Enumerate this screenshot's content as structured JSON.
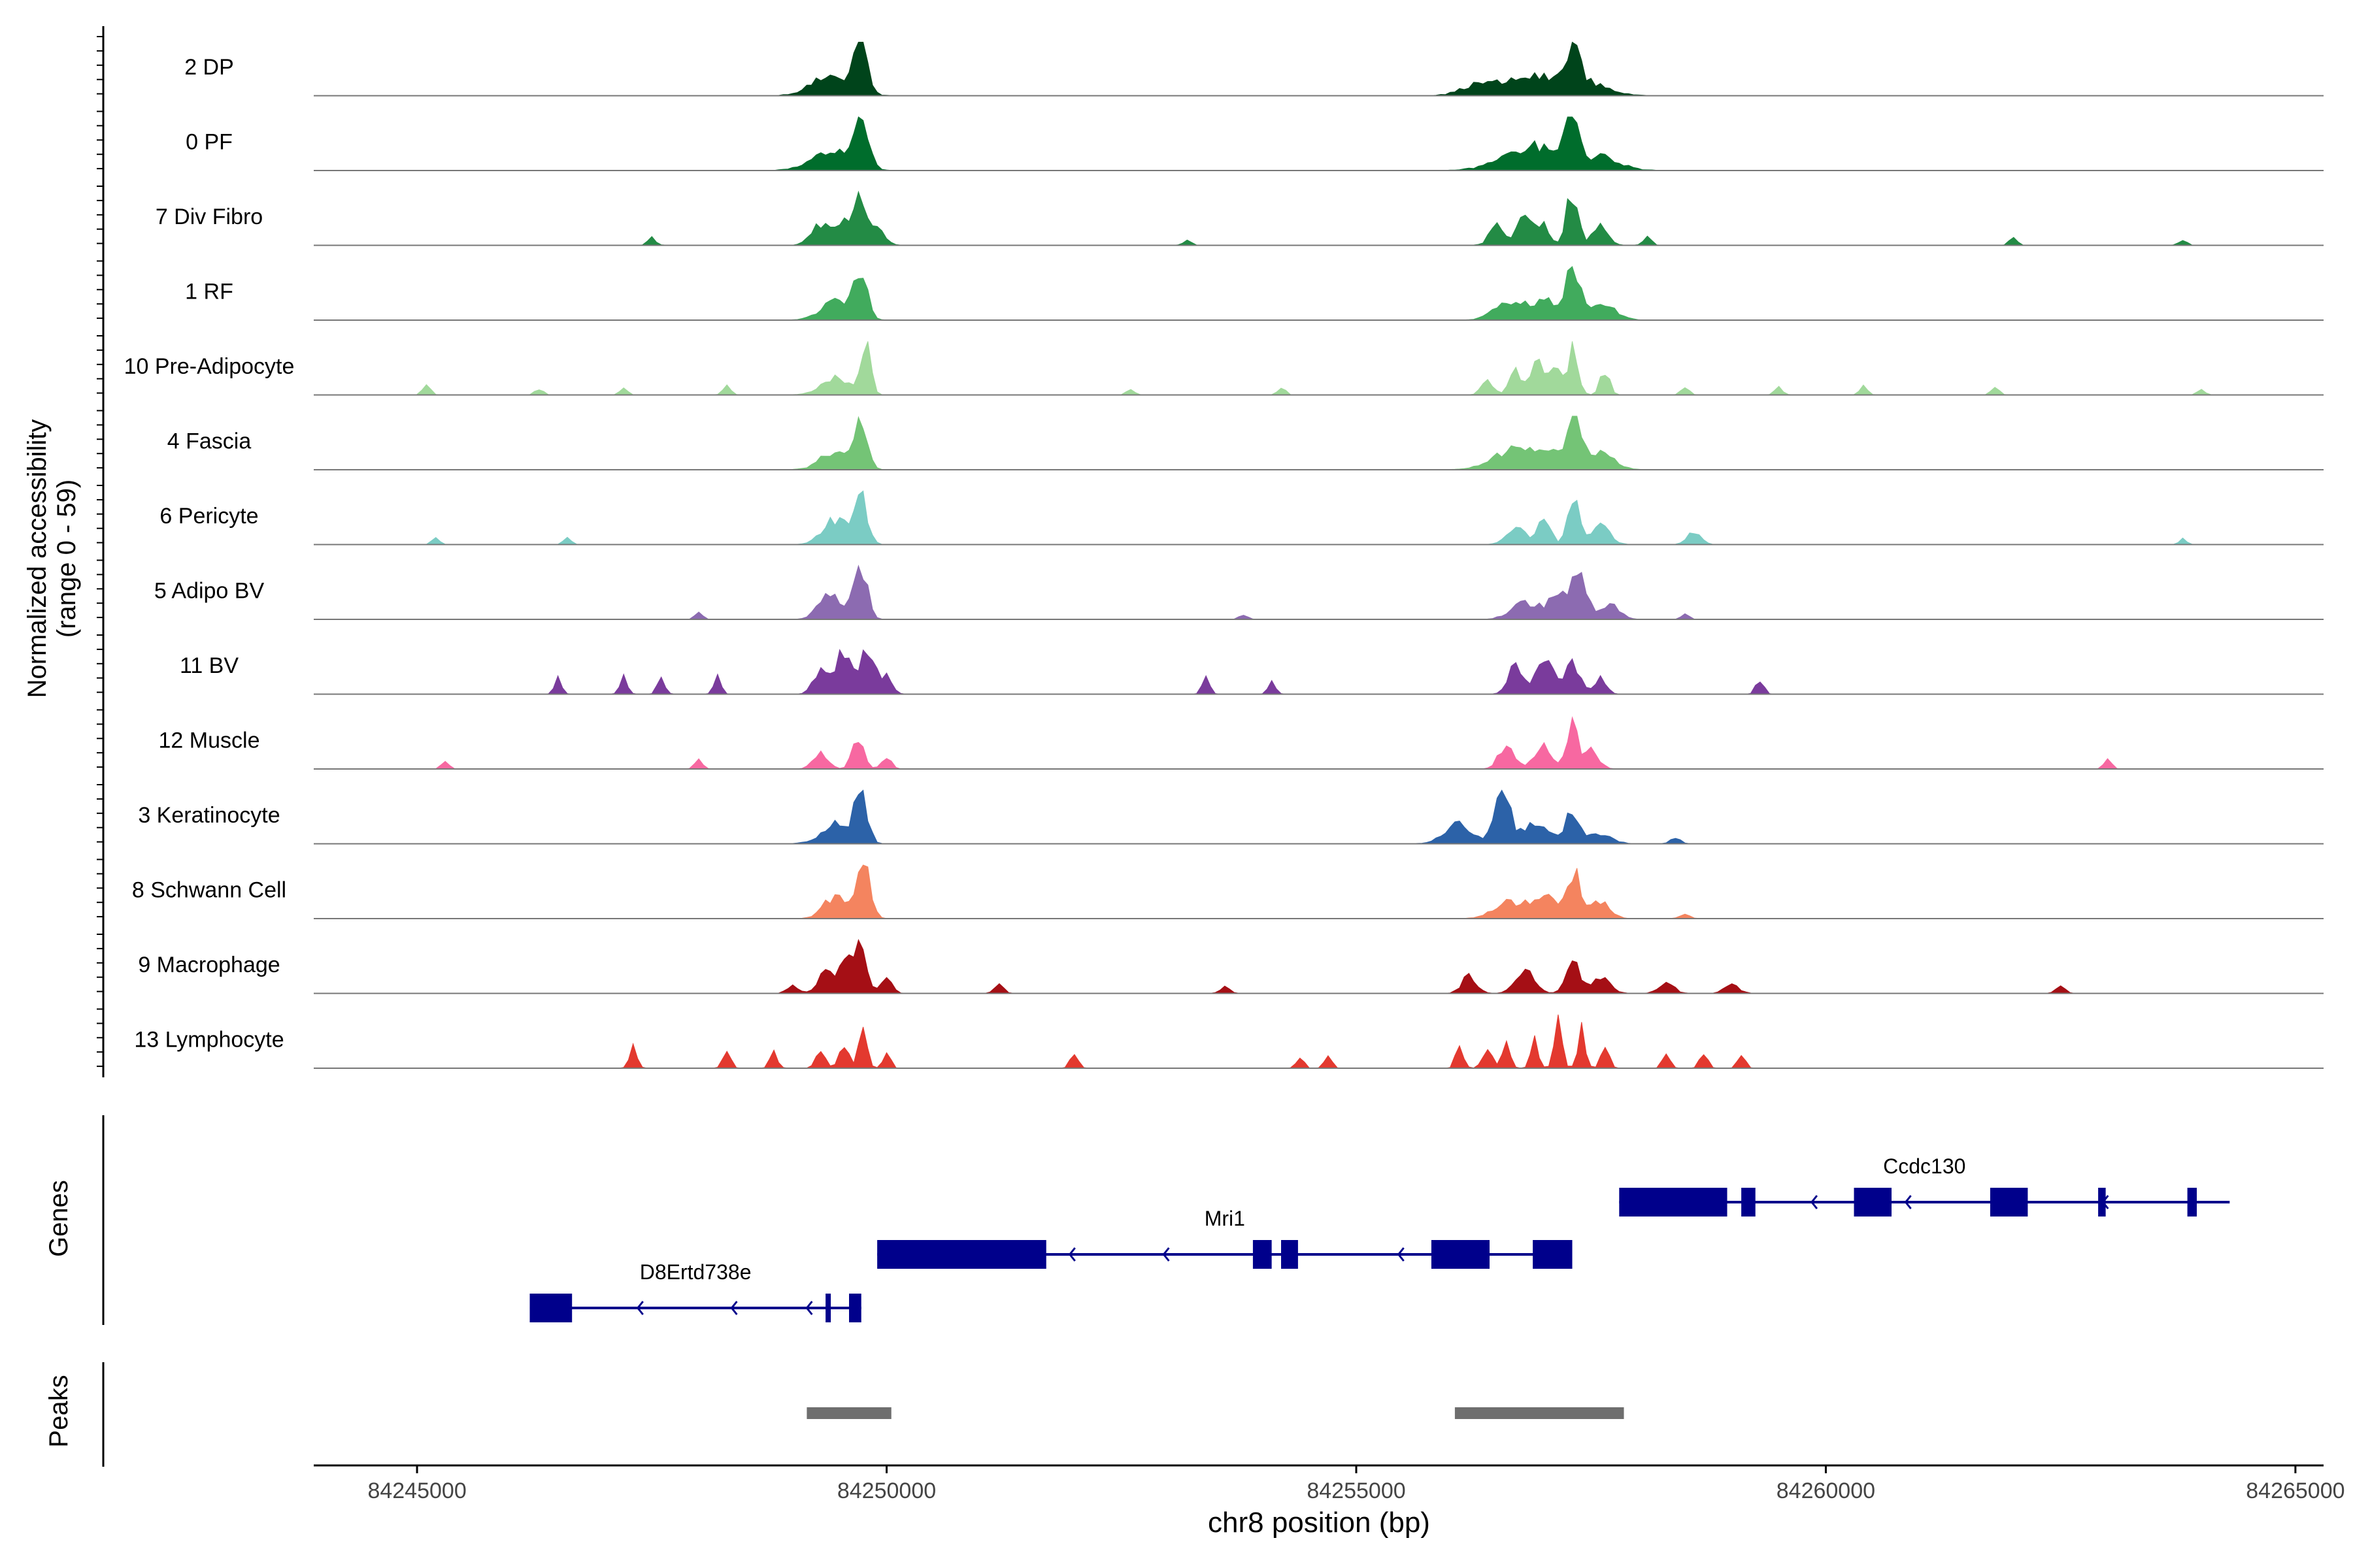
{
  "chart_data": {
    "type": "coverage-track",
    "y_axis_label": "Normalized accessibility",
    "y_axis_sublabel": "(range 0 - 59)",
    "y_range": [
      0,
      59
    ],
    "xlabel": "chr8 position (bp)",
    "xlim": [
      84243900,
      84265300
    ],
    "x_ticks": [
      84245000,
      84250000,
      84255000,
      84260000,
      84265000
    ],
    "x_tick_labels": [
      "84245000",
      "84250000",
      "84255000",
      "84260000",
      "84265000"
    ],
    "bin_size_bp": 50,
    "tracks": [
      {
        "name": "2 DP",
        "color": "#00441b",
        "baseline": 0.4,
        "scale": 1.0,
        "range": [
          84244000,
          84264300
        ],
        "peaks": [
          [
            84249400,
            0.35,
            200
          ],
          [
            84249720,
            1.0,
            70
          ],
          [
            84256300,
            0.18,
            180
          ],
          [
            84256900,
            0.35,
            300
          ],
          [
            84257300,
            0.78,
            70
          ],
          [
            84257500,
            0.2,
            200
          ]
        ]
      },
      {
        "name": "0 PF",
        "color": "#006d2c",
        "baseline": 0.4,
        "scale": 1.0,
        "range": [
          84244000,
          84264300
        ],
        "peaks": [
          [
            84249400,
            0.35,
            200
          ],
          [
            84249720,
            0.9,
            80
          ],
          [
            84256700,
            0.25,
            250
          ],
          [
            84257000,
            0.3,
            200
          ],
          [
            84257300,
            0.9,
            70
          ],
          [
            84257600,
            0.25,
            200
          ]
        ]
      },
      {
        "name": "7 Div Fibro",
        "color": "#238b45",
        "baseline": 0.3,
        "scale": 1.0,
        "range": [
          84246300,
          84264300
        ],
        "peaks": [
          [
            84249300,
            0.4,
            100
          ],
          [
            84249550,
            0.55,
            80
          ],
          [
            84249720,
            1.0,
            60
          ],
          [
            84249900,
            0.35,
            80
          ],
          [
            84256500,
            0.35,
            80
          ],
          [
            84256800,
            0.55,
            80
          ],
          [
            84257000,
            0.4,
            60
          ],
          [
            84257300,
            1.0,
            60
          ],
          [
            84257600,
            0.4,
            80
          ],
          [
            84247500,
            0.15,
            40
          ],
          [
            84253200,
            0.1,
            40
          ],
          [
            84258100,
            0.18,
            40
          ],
          [
            84262000,
            0.15,
            40
          ],
          [
            84263800,
            0.12,
            40
          ]
        ]
      },
      {
        "name": "1 RF",
        "color": "#41ab5d",
        "baseline": 0.25,
        "scale": 1.0,
        "range": [
          84244000,
          84264300
        ],
        "peaks": [
          [
            84249450,
            0.35,
            150
          ],
          [
            84249720,
            0.85,
            70
          ],
          [
            84256600,
            0.25,
            150
          ],
          [
            84257000,
            0.35,
            200
          ],
          [
            84257300,
            0.9,
            70
          ],
          [
            84257600,
            0.3,
            150
          ]
        ]
      },
      {
        "name": "10 Pre-Adipocyte",
        "color": "#a1d99b",
        "baseline": 0.2,
        "scale": 1.0,
        "range": [
          84245000,
          84264300
        ],
        "peaks": [
          [
            84249450,
            0.3,
            150
          ],
          [
            84249780,
            1.0,
            50
          ],
          [
            84256400,
            0.3,
            60
          ],
          [
            84256700,
            0.45,
            70
          ],
          [
            84256950,
            0.65,
            70
          ],
          [
            84257150,
            0.5,
            60
          ],
          [
            84257320,
            0.9,
            50
          ],
          [
            84257650,
            0.45,
            50
          ],
          [
            84245100,
            0.2,
            40
          ],
          [
            84246300,
            0.12,
            40
          ],
          [
            84247200,
            0.12,
            40
          ],
          [
            84248300,
            0.15,
            40
          ],
          [
            84252600,
            0.12,
            40
          ],
          [
            84254200,
            0.15,
            40
          ],
          [
            84258500,
            0.15,
            40
          ],
          [
            84259500,
            0.15,
            40
          ],
          [
            84260400,
            0.15,
            40
          ],
          [
            84261800,
            0.15,
            40
          ],
          [
            84264000,
            0.1,
            40
          ]
        ]
      },
      {
        "name": "4 Fascia",
        "color": "#74c476",
        "baseline": 0.2,
        "scale": 1.0,
        "range": [
          84244000,
          84264300
        ],
        "peaks": [
          [
            84249450,
            0.35,
            150
          ],
          [
            84249720,
            0.9,
            70
          ],
          [
            84256600,
            0.3,
            200
          ],
          [
            84257000,
            0.35,
            200
          ],
          [
            84257320,
            1.0,
            70
          ],
          [
            84257600,
            0.3,
            150
          ]
        ]
      },
      {
        "name": "6 Pericyte",
        "color": "#7bccc4",
        "baseline": 0.15,
        "scale": 1.0,
        "range": [
          84245000,
          84264300
        ],
        "peaks": [
          [
            84249450,
            0.45,
            130
          ],
          [
            84249720,
            1.0,
            70
          ],
          [
            84256700,
            0.3,
            100
          ],
          [
            84257000,
            0.45,
            70
          ],
          [
            84257320,
            1.0,
            60
          ],
          [
            84257600,
            0.35,
            100
          ],
          [
            84258600,
            0.25,
            70
          ],
          [
            84245200,
            0.12,
            40
          ],
          [
            84246600,
            0.12,
            40
          ],
          [
            84263800,
            0.1,
            40
          ]
        ]
      },
      {
        "name": "5 Adipo BV",
        "color": "#8c6bb1",
        "baseline": 0.15,
        "scale": 1.0,
        "range": [
          84244000,
          84264300
        ],
        "peaks": [
          [
            84249400,
            0.45,
            120
          ],
          [
            84249720,
            1.0,
            70
          ],
          [
            84256800,
            0.3,
            150
          ],
          [
            84257200,
            0.55,
            120
          ],
          [
            84257400,
            0.7,
            70
          ],
          [
            84257700,
            0.3,
            100
          ],
          [
            84248000,
            0.12,
            40
          ],
          [
            84253800,
            0.1,
            40
          ],
          [
            84258500,
            0.1,
            40
          ]
        ]
      },
      {
        "name": "11 BV",
        "color": "#7a3b9c",
        "baseline": 0.0,
        "scale": 1.0,
        "range": [
          84246000,
          84260000
        ],
        "peaks": [
          [
            84249300,
            0.4,
            80
          ],
          [
            84249550,
            0.8,
            80
          ],
          [
            84249800,
            0.9,
            70
          ],
          [
            84250000,
            0.35,
            60
          ],
          [
            84256700,
            0.6,
            80
          ],
          [
            84257000,
            0.8,
            80
          ],
          [
            84257300,
            0.6,
            80
          ],
          [
            84257600,
            0.35,
            60
          ],
          [
            84246500,
            0.3,
            40
          ],
          [
            84247200,
            0.3,
            40
          ],
          [
            84247600,
            0.3,
            40
          ],
          [
            84248200,
            0.3,
            40
          ],
          [
            84253400,
            0.3,
            40
          ],
          [
            84254100,
            0.25,
            40
          ],
          [
            84259300,
            0.3,
            40
          ]
        ]
      },
      {
        "name": "12 Muscle",
        "color": "#f768a1",
        "baseline": 0.0,
        "scale": 1.0,
        "range": [
          84244500,
          84264200
        ],
        "peaks": [
          [
            84249300,
            0.3,
            80
          ],
          [
            84249700,
            0.65,
            60
          ],
          [
            84250000,
            0.25,
            50
          ],
          [
            84256600,
            0.45,
            80
          ],
          [
            84257000,
            0.4,
            100
          ],
          [
            84257300,
            1.0,
            50
          ],
          [
            84257500,
            0.35,
            80
          ],
          [
            84245300,
            0.15,
            40
          ],
          [
            84248000,
            0.2,
            40
          ],
          [
            84263000,
            0.2,
            40
          ]
        ]
      },
      {
        "name": "3 Keratinocyte",
        "color": "#2c62a8",
        "baseline": 0.3,
        "scale": 1.0,
        "range": [
          84244000,
          84264300
        ],
        "peaks": [
          [
            84249450,
            0.35,
            150
          ],
          [
            84249720,
            0.9,
            70
          ],
          [
            84256100,
            0.35,
            150
          ],
          [
            84256550,
            1.0,
            80
          ],
          [
            84256900,
            0.35,
            150
          ],
          [
            84257300,
            0.65,
            70
          ],
          [
            84257600,
            0.2,
            120
          ],
          [
            84258400,
            0.1,
            50
          ]
        ]
      },
      {
        "name": "8 Schwann Cell",
        "color": "#f4845f",
        "baseline": 0.2,
        "scale": 1.0,
        "range": [
          84244000,
          84264300
        ],
        "peaks": [
          [
            84249450,
            0.4,
            120
          ],
          [
            84249750,
            1.0,
            70
          ],
          [
            84256600,
            0.3,
            150
          ],
          [
            84257000,
            0.4,
            150
          ],
          [
            84257320,
            0.8,
            70
          ],
          [
            84257600,
            0.3,
            100
          ],
          [
            84258500,
            0.1,
            50
          ]
        ]
      },
      {
        "name": "9 Macrophage",
        "color": "#a50f15",
        "baseline": 0.1,
        "scale": 1.0,
        "range": [
          84247900,
          84263700
        ],
        "peaks": [
          [
            84249350,
            0.45,
            80
          ],
          [
            84249550,
            0.6,
            70
          ],
          [
            84249720,
            1.0,
            60
          ],
          [
            84250000,
            0.3,
            60
          ],
          [
            84256200,
            0.3,
            80
          ],
          [
            84256800,
            0.4,
            100
          ],
          [
            84257300,
            0.6,
            70
          ],
          [
            84257600,
            0.3,
            100
          ],
          [
            84258300,
            0.2,
            80
          ],
          [
            84259000,
            0.15,
            80
          ],
          [
            84249000,
            0.15,
            60
          ],
          [
            84251200,
            0.15,
            50
          ],
          [
            84253600,
            0.12,
            50
          ],
          [
            84262500,
            0.12,
            50
          ]
        ]
      },
      {
        "name": "13 Lymphocyte",
        "color": "#e3392f",
        "baseline": 0.0,
        "scale": 1.0,
        "range": [
          84247000,
          84259500
        ],
        "peaks": [
          [
            84249300,
            0.3,
            50
          ],
          [
            84249550,
            0.4,
            50
          ],
          [
            84249750,
            0.8,
            40
          ],
          [
            84250000,
            0.3,
            40
          ],
          [
            84256100,
            0.45,
            40
          ],
          [
            84256400,
            0.4,
            50
          ],
          [
            84256600,
            0.5,
            40
          ],
          [
            84256900,
            0.55,
            40
          ],
          [
            84257150,
            0.9,
            40
          ],
          [
            84257400,
            0.7,
            40
          ],
          [
            84257650,
            0.45,
            40
          ],
          [
            84247300,
            0.4,
            40
          ],
          [
            84248300,
            0.35,
            40
          ],
          [
            84248800,
            0.3,
            40
          ],
          [
            84252000,
            0.3,
            40
          ],
          [
            84254400,
            0.2,
            40
          ],
          [
            84254700,
            0.2,
            40
          ],
          [
            84258300,
            0.25,
            40
          ],
          [
            84258700,
            0.3,
            40
          ],
          [
            84259100,
            0.25,
            40
          ]
        ]
      }
    ],
    "genes_label": "Genes",
    "genes": [
      {
        "name": "Ccdc130",
        "strand": "-",
        "row": 0,
        "start": 84257800,
        "end": 84264300,
        "exons": [
          [
            84257800,
            84258950
          ],
          [
            84259100,
            84259250
          ],
          [
            84260300,
            84260700
          ],
          [
            84261750,
            84262150
          ],
          [
            84262900,
            84262980
          ],
          [
            84263850,
            84263950
          ]
        ],
        "arrows": [
          84259850,
          84260850,
          84262950
        ]
      },
      {
        "name": "Mri1",
        "strand": "-",
        "row": 1,
        "start": 84249900,
        "end": 84257300,
        "exons": [
          [
            84249900,
            84251700
          ],
          [
            84253900,
            84254100
          ],
          [
            84254200,
            84254380
          ],
          [
            84255800,
            84256420
          ],
          [
            84256880,
            84257300
          ]
        ],
        "arrows": [
          84251950,
          84252950,
          84253950,
          84255450
        ]
      },
      {
        "name": "D8Ertd738e",
        "strand": "-",
        "row": 2,
        "start": 84246200,
        "end": 84249730,
        "exons": [
          [
            84246200,
            84246650
          ],
          [
            84249350,
            84249400
          ],
          [
            84249600,
            84249730
          ]
        ],
        "arrows": [
          84247350,
          84248350,
          84249150
        ]
      }
    ],
    "peaks_label": "Peaks",
    "peak_regions": [
      [
        84249150,
        84250050
      ],
      [
        84256050,
        84257850
      ]
    ]
  }
}
